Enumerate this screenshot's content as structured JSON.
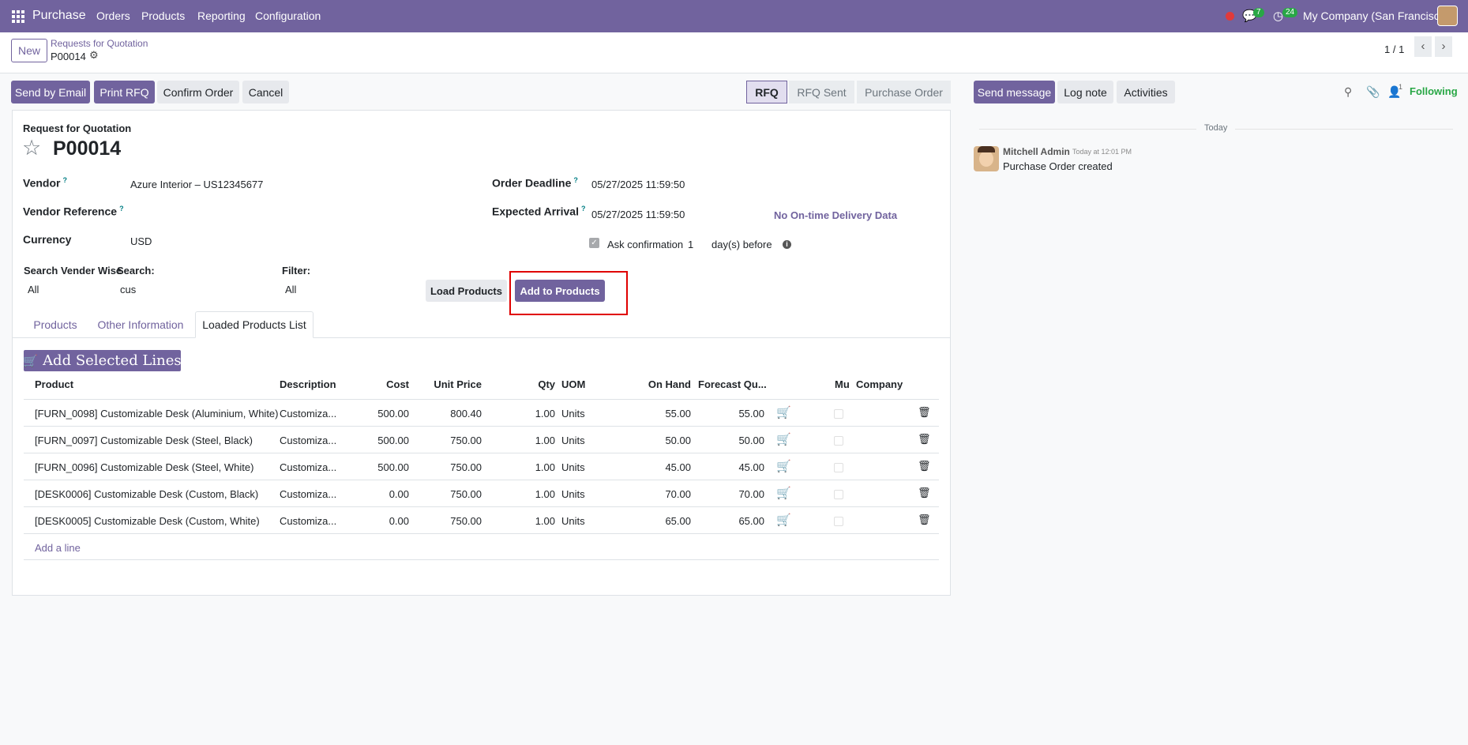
{
  "navbar": {
    "app_name": "Purchase",
    "menu": [
      "Orders",
      "Products",
      "Reporting",
      "Configuration"
    ],
    "messages_count": "7",
    "activities_count": "24",
    "company": "My Company (San Francisco)"
  },
  "control_panel": {
    "new_label": "New",
    "breadcrumb_parent": "Requests for Quotation",
    "record": "P00014",
    "pager": "1 / 1"
  },
  "actions": {
    "send_email": "Send by Email",
    "print_rfq": "Print RFQ",
    "confirm": "Confirm Order",
    "cancel": "Cancel"
  },
  "stages": [
    "RFQ",
    "RFQ Sent",
    "Purchase Order"
  ],
  "chatter": {
    "send_message": "Send message",
    "log_note": "Log note",
    "activities": "Activities",
    "followers_count": "1",
    "following": "Following",
    "date_separator": "Today",
    "author": "Mitchell Admin",
    "time": "Today at 12:01 PM",
    "message": "Purchase Order created"
  },
  "form": {
    "subtitle": "Request for Quotation",
    "name": "P00014",
    "vendor_label": "Vendor",
    "vendor": "Azure Interior – US12345677",
    "vendor_ref_label": "Vendor Reference",
    "currency_label": "Currency",
    "currency": "USD",
    "deadline_label": "Order Deadline",
    "deadline": "05/27/2025 11:59:50",
    "arrival_label": "Expected Arrival",
    "arrival": "05/27/2025 11:59:50",
    "ontime": "No On-time Delivery Data",
    "ask_label": "Ask confirmation",
    "ask_days": "1",
    "ask_suffix": "day(s) before",
    "search_vendor_label": "Search Vender Wise",
    "search_vendor": "All",
    "search_label": "Search:",
    "search_value": "cus",
    "filter_label": "Filter:",
    "filter_value": "All",
    "load_products": "Load Products",
    "add_to_products": "Add to Products"
  },
  "tabs": [
    "Products",
    "Other Information",
    "Loaded Products List"
  ],
  "table": {
    "add_selected": "Add Selected Lines",
    "headers": {
      "product": "Product",
      "description": "Description",
      "cost": "Cost",
      "unit_price": "Unit Price",
      "qty": "Qty",
      "uom": "UOM",
      "on_hand": "On Hand",
      "forecast": "Forecast Qu...",
      "mu": "Mu",
      "company": "Company"
    },
    "rows": [
      {
        "product": "[FURN_0098] Customizable Desk (Aluminium, White)",
        "description": "Customiza...",
        "cost": "500.00",
        "price": "800.40",
        "qty": "1.00",
        "uom": "Units",
        "onhand": "55.00",
        "forecast": "55.00"
      },
      {
        "product": "[FURN_0097] Customizable Desk (Steel, Black)",
        "description": "Customiza...",
        "cost": "500.00",
        "price": "750.00",
        "qty": "1.00",
        "uom": "Units",
        "onhand": "50.00",
        "forecast": "50.00"
      },
      {
        "product": "[FURN_0096] Customizable Desk (Steel, White)",
        "description": "Customiza...",
        "cost": "500.00",
        "price": "750.00",
        "qty": "1.00",
        "uom": "Units",
        "onhand": "45.00",
        "forecast": "45.00"
      },
      {
        "product": "[DESK0006] Customizable Desk (Custom, Black)",
        "description": "Customiza...",
        "cost": "0.00",
        "price": "750.00",
        "qty": "1.00",
        "uom": "Units",
        "onhand": "70.00",
        "forecast": "70.00"
      },
      {
        "product": "[DESK0005] Customizable Desk (Custom, White)",
        "description": "Customiza...",
        "cost": "0.00",
        "price": "750.00",
        "qty": "1.00",
        "uom": "Units",
        "onhand": "65.00",
        "forecast": "65.00"
      }
    ],
    "add_line": "Add a line"
  },
  "colors": {
    "brand": "#71639e",
    "highlight": "#e00000",
    "following": "#28a745"
  }
}
